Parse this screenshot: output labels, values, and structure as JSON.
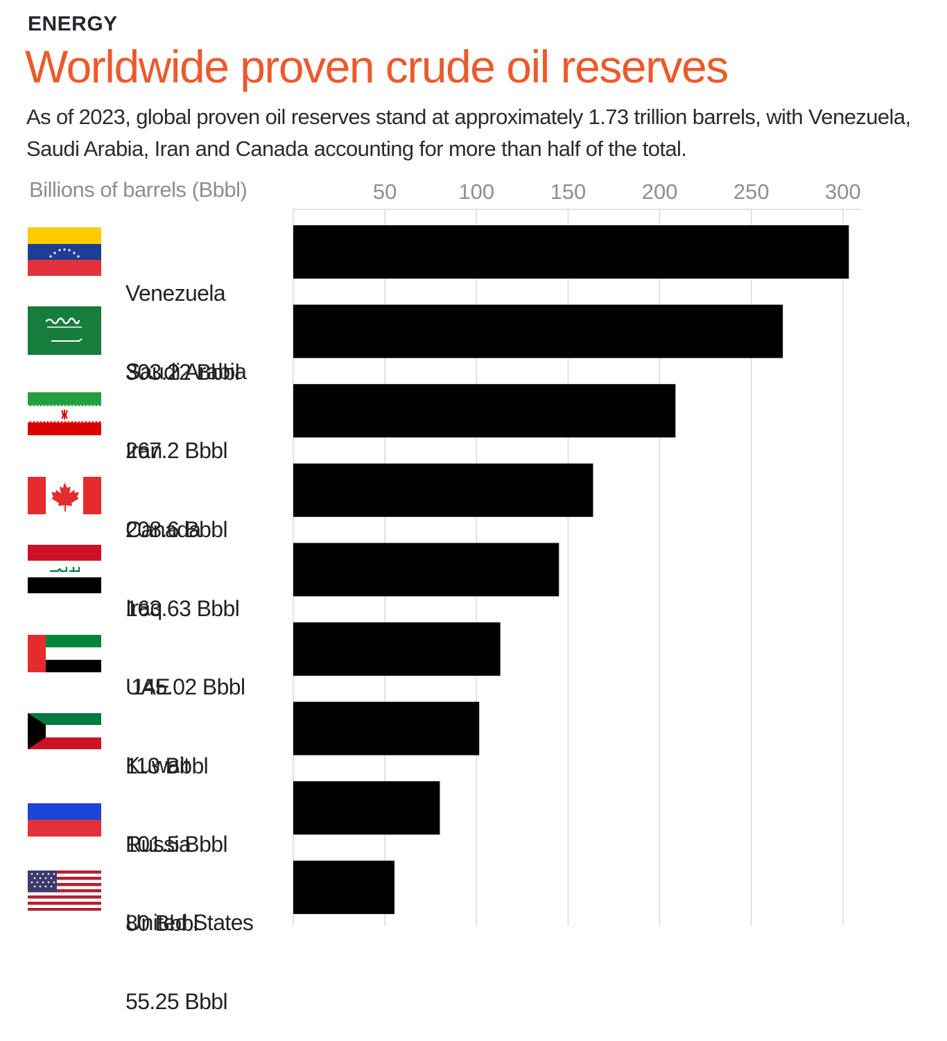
{
  "header": {
    "kicker": "ENERGY",
    "title": "Worldwide proven crude oil reserves",
    "subtitle": "As of 2023, global proven oil reserves stand at approximately 1.73 trillion barrels, with Venezuela, Saudi Arabia, Iran and Canada accounting for more than half of the total."
  },
  "chart_data": {
    "type": "bar",
    "orientation": "horizontal",
    "title": "Worldwide proven crude oil reserves",
    "xlabel": "Billions of barrels (Bbbl)",
    "xlim": [
      0,
      310
    ],
    "xticks": [
      50,
      100,
      150,
      200,
      250,
      300
    ],
    "grid": true,
    "bar_color": "#000000",
    "categories": [
      "Venezuela",
      "Saudi Arabia",
      "Iran",
      "Canada",
      "Iraq",
      "UAE",
      "Kuwait",
      "Russia",
      "United States"
    ],
    "values": [
      303.22,
      267.2,
      208.6,
      163.63,
      145.02,
      113,
      101.5,
      80,
      55.25
    ],
    "value_labels": [
      "303.22 Bbbl",
      "267.2 Bbbl",
      "208.6 Bbbl",
      "163.63 Bbbl",
      " 145.02 Bbbl",
      "113 Bbbl",
      "101.5 Bbbl",
      "80 Bbbl",
      "55.25 Bbbl"
    ]
  },
  "flags": [
    {
      "country": "Venezuela",
      "icon": "venezuela-flag-icon"
    },
    {
      "country": "Saudi Arabia",
      "icon": "saudi-arabia-flag-icon"
    },
    {
      "country": "Iran",
      "icon": "iran-flag-icon"
    },
    {
      "country": "Canada",
      "icon": "canada-flag-icon"
    },
    {
      "country": "Iraq",
      "icon": "iraq-flag-icon"
    },
    {
      "country": "UAE",
      "icon": "uae-flag-icon"
    },
    {
      "country": "Kuwait",
      "icon": "kuwait-flag-icon"
    },
    {
      "country": "Russia",
      "icon": "russia-flag-icon"
    },
    {
      "country": "United States",
      "icon": "united-states-flag-icon"
    }
  ],
  "colors": {
    "accent": "#ec5a2b",
    "bar": "#000000",
    "gridline": "#d9d9d9",
    "muted_text": "#8e8e8e"
  }
}
